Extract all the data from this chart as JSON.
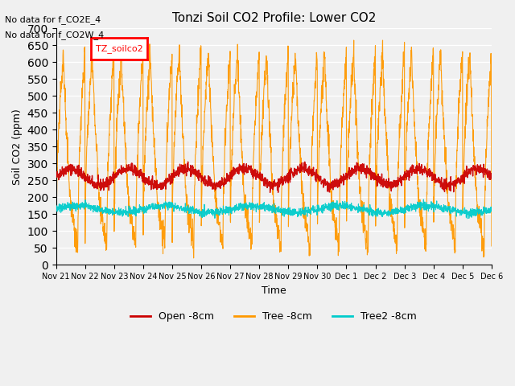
{
  "title": "Tonzi Soil CO2 Profile: Lower CO2",
  "xlabel": "Time",
  "ylabel": "Soil CO2 (ppm)",
  "ylim": [
    0,
    700
  ],
  "yticks": [
    0,
    50,
    100,
    150,
    200,
    250,
    300,
    350,
    400,
    450,
    500,
    550,
    600,
    650,
    700
  ],
  "annotations": [
    "No data for f_CO2E_4",
    "No data for f_CO2W_4"
  ],
  "legend_label": "TZ_soilco2",
  "legend_entries": [
    "Open -8cm",
    "Tree -8cm",
    "Tree2 -8cm"
  ],
  "line_colors": [
    "#cc0000",
    "#ff9900",
    "#00cccc"
  ],
  "xticklabels": [
    "Nov 21",
    "Nov 22",
    "Nov 23",
    "Nov 24",
    "Nov 25",
    "Nov 26",
    "Nov 27",
    "Nov 28",
    "Nov 29",
    "Nov 30",
    "Dec 1",
    "Dec 2",
    "Dec 3",
    "Dec 4",
    "Dec 5",
    "Dec 6"
  ],
  "xtick_positions": [
    0,
    1,
    2,
    3,
    4,
    5,
    6,
    7,
    8,
    9,
    10,
    11,
    12,
    13,
    14,
    15
  ],
  "xlim": [
    0,
    15
  ],
  "background_color": "#f0f0f0"
}
